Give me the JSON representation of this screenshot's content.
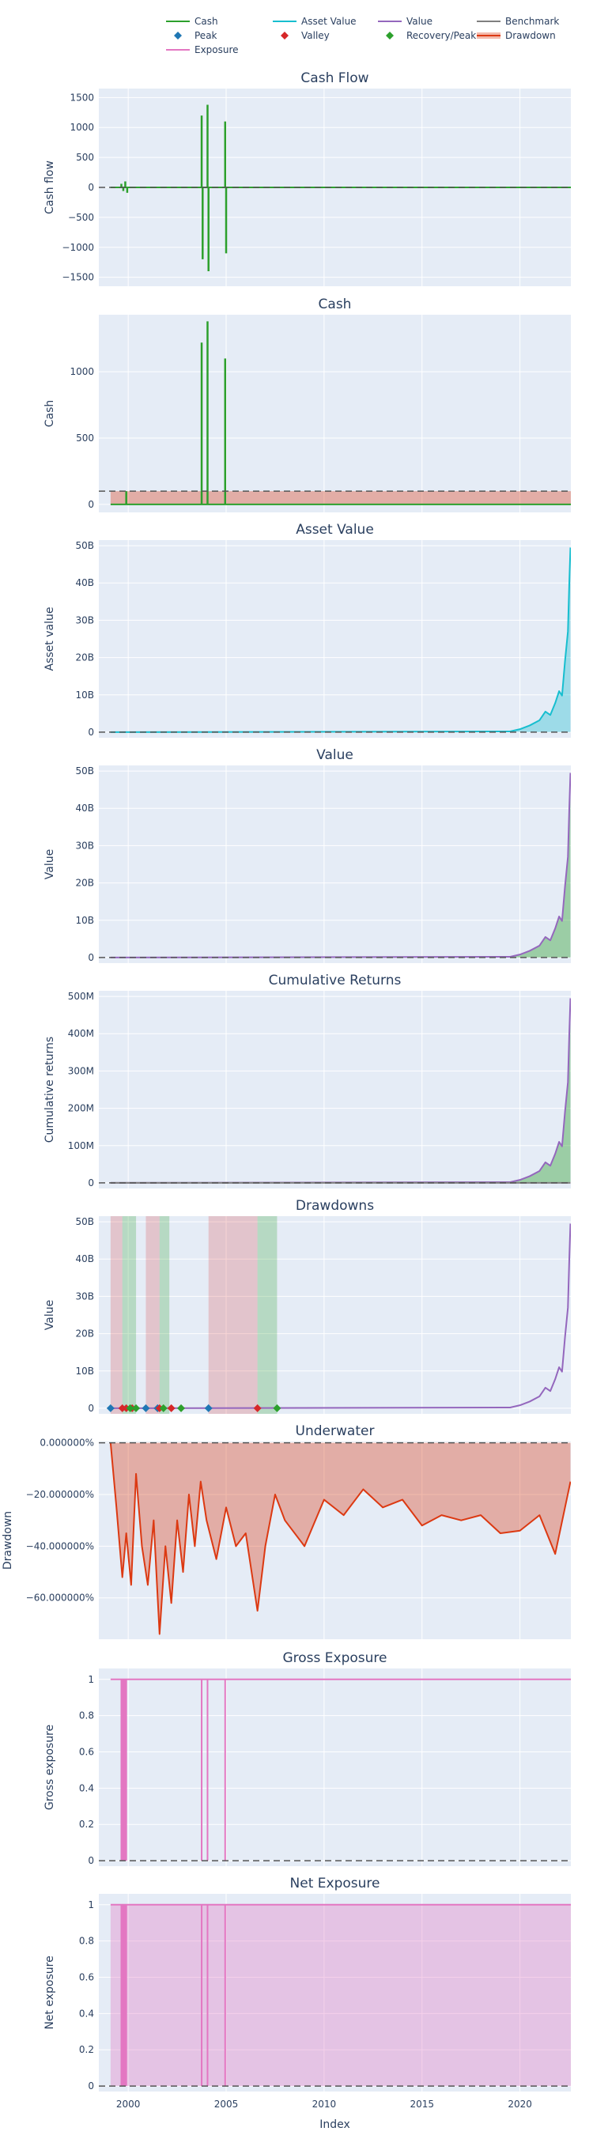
{
  "colors": {
    "plot_bg": "#e5ecf6",
    "grid": "#ffffff",
    "text": "#2a3f5f",
    "cash": "#2ca02c",
    "asset_value": "#17becf",
    "value": "#9467bd",
    "benchmark": "#7f7f7f",
    "exposure": "#e377c2",
    "drawdown": "#dc3912",
    "peak": "#1f77b4",
    "valley": "#d62728",
    "recovery": "#2ca02c"
  },
  "legend": {
    "placement": "top",
    "items": [
      {
        "label": "Cash",
        "kind": "line",
        "color": "#2ca02c"
      },
      {
        "label": "Asset Value",
        "kind": "line",
        "color": "#17becf"
      },
      {
        "label": "Value",
        "kind": "line",
        "color": "#9467bd"
      },
      {
        "label": "Benchmark",
        "kind": "line",
        "color": "#7f7f7f"
      },
      {
        "label": "Peak",
        "kind": "diamond",
        "color": "#1f77b4"
      },
      {
        "label": "Valley",
        "kind": "diamond",
        "color": "#d62728"
      },
      {
        "label": "Recovery/Peak",
        "kind": "diamond",
        "color": "#2ca02c"
      },
      {
        "label": "Drawdown",
        "kind": "band",
        "color": "#dc3912"
      },
      {
        "label": "Exposure",
        "kind": "line",
        "color": "#e377c2"
      }
    ]
  },
  "x_axis": {
    "title": "Index",
    "range": [
      1998.5,
      2022.6
    ],
    "ticks": [
      2000,
      2005,
      2010,
      2015,
      2020
    ],
    "tick_labels": [
      "2000",
      "2005",
      "2010",
      "2015",
      "2020"
    ]
  },
  "chart_data": [
    {
      "id": "cash-flow",
      "type": "line",
      "title": "Cash Flow",
      "ylabel": "Cash flow",
      "ylim": [
        -1650,
        1650
      ],
      "yticks": [
        1500,
        1000,
        500,
        0,
        -500,
        -1000,
        -1500
      ],
      "ytick_labels": [
        "1500",
        "1000",
        "500",
        "0",
        "−500",
        "−1000",
        "−1500"
      ],
      "reference_line": 0,
      "series": [
        {
          "name": "Cash",
          "color": "#2ca02c",
          "baseline": 0,
          "spikes": [
            [
              1999.65,
              60
            ],
            [
              1999.75,
              -60
            ],
            [
              1999.85,
              100
            ],
            [
              1999.95,
              -90
            ],
            [
              2003.75,
              1200
            ],
            [
              2003.8,
              -1200
            ],
            [
              2004.05,
              1380
            ],
            [
              2004.1,
              -1400
            ],
            [
              2004.95,
              1100
            ],
            [
              2005.0,
              -1100
            ]
          ]
        }
      ]
    },
    {
      "id": "cash",
      "type": "area",
      "title": "Cash",
      "ylabel": "Cash",
      "ylim": [
        -60,
        1430
      ],
      "yticks": [
        1000,
        500,
        0
      ],
      "ytick_labels": [
        "1000",
        "500",
        "0"
      ],
      "reference_line": 100,
      "band": {
        "from": 0,
        "to": 100,
        "x_start": 1999.1,
        "color": "#dc3912"
      },
      "series": [
        {
          "name": "Cash",
          "color": "#2ca02c",
          "baseline": 0,
          "spikes": [
            [
              1999.9,
              100
            ],
            [
              2003.75,
              1220
            ],
            [
              2004.05,
              1380
            ],
            [
              2004.95,
              1100
            ]
          ]
        }
      ]
    },
    {
      "id": "asset-value",
      "type": "area",
      "title": "Asset Value",
      "ylabel": "Asset value",
      "ylim": [
        -1.5,
        51.5
      ],
      "unit": "B",
      "yticks": [
        50,
        40,
        30,
        20,
        10,
        0
      ],
      "ytick_labels": [
        "50B",
        "40B",
        "30B",
        "20B",
        "10B",
        "0"
      ],
      "reference_line": 0,
      "series": [
        {
          "name": "Asset Value",
          "color": "#17becf",
          "points": [
            [
              1999.1,
              0
            ],
            [
              2019.5,
              0.2
            ],
            [
              2020.0,
              0.8
            ],
            [
              2020.5,
              1.8
            ],
            [
              2021.0,
              3.2
            ],
            [
              2021.3,
              5.5
            ],
            [
              2021.55,
              4.6
            ],
            [
              2021.8,
              7.8
            ],
            [
              2022.0,
              11.0
            ],
            [
              2022.15,
              9.8
            ],
            [
              2022.3,
              19.0
            ],
            [
              2022.45,
              27.0
            ],
            [
              2022.52,
              40.0
            ],
            [
              2022.58,
              49.5
            ]
          ]
        }
      ]
    },
    {
      "id": "value",
      "type": "area",
      "title": "Value",
      "ylabel": "Value",
      "ylim": [
        -1.5,
        51.5
      ],
      "unit": "B",
      "yticks": [
        50,
        40,
        30,
        20,
        10,
        0
      ],
      "ytick_labels": [
        "50B",
        "40B",
        "30B",
        "20B",
        "10B",
        "0"
      ],
      "reference_line": 0,
      "fill_color": "#2ca02c",
      "series": [
        {
          "name": "Value",
          "color": "#9467bd",
          "points": [
            [
              1999.1,
              0
            ],
            [
              2019.5,
              0.2
            ],
            [
              2020.0,
              0.8
            ],
            [
              2020.5,
              1.8
            ],
            [
              2021.0,
              3.2
            ],
            [
              2021.3,
              5.5
            ],
            [
              2021.55,
              4.6
            ],
            [
              2021.8,
              7.8
            ],
            [
              2022.0,
              11.0
            ],
            [
              2022.15,
              9.8
            ],
            [
              2022.3,
              19.0
            ],
            [
              2022.45,
              27.0
            ],
            [
              2022.52,
              40.0
            ],
            [
              2022.58,
              49.5
            ]
          ]
        }
      ]
    },
    {
      "id": "cumulative-returns",
      "type": "area",
      "title": "Cumulative Returns",
      "ylabel": "Cumulative returns",
      "ylim": [
        -15,
        515
      ],
      "unit": "M",
      "yticks": [
        500,
        400,
        300,
        200,
        100,
        0
      ],
      "ytick_labels": [
        "500M",
        "400M",
        "300M",
        "200M",
        "100M",
        "0"
      ],
      "reference_line": 0,
      "fill_color": "#2ca02c",
      "series": [
        {
          "name": "Value",
          "color": "#9467bd",
          "points": [
            [
              1999.1,
              0
            ],
            [
              2019.5,
              2
            ],
            [
              2020.0,
              8
            ],
            [
              2020.5,
              18
            ],
            [
              2021.0,
              32
            ],
            [
              2021.3,
              55
            ],
            [
              2021.55,
              46
            ],
            [
              2021.8,
              78
            ],
            [
              2022.0,
              110
            ],
            [
              2022.15,
              98
            ],
            [
              2022.3,
              190
            ],
            [
              2022.45,
              270
            ],
            [
              2022.52,
              400
            ],
            [
              2022.58,
              495
            ]
          ]
        },
        {
          "name": "Benchmark",
          "color": "#7f7f7f",
          "points": [
            [
              1999.1,
              0
            ],
            [
              2022.58,
              0
            ]
          ]
        }
      ]
    },
    {
      "id": "drawdowns",
      "type": "line",
      "title": "Drawdowns",
      "ylabel": "Value",
      "ylim": [
        -1.5,
        51.5
      ],
      "unit": "B",
      "yticks": [
        50,
        40,
        30,
        20,
        10,
        0
      ],
      "ytick_labels": [
        "50B",
        "40B",
        "30B",
        "20B",
        "10B",
        "0"
      ],
      "regions": [
        {
          "start": 1999.1,
          "valley": 1999.7,
          "end": 2000.4
        },
        {
          "start": 2000.9,
          "valley": 2001.6,
          "end": 2002.1
        },
        {
          "start": 2004.1,
          "valley": 2006.6,
          "end": 2007.6
        }
      ],
      "markers": {
        "peak": [
          1999.1,
          2000.9,
          2001.5,
          2004.1
        ],
        "valley": [
          1999.7,
          1999.9,
          2000.2,
          2001.6,
          2002.2,
          2006.6
        ],
        "recovery": [
          2000.1,
          2000.4,
          2001.8,
          2002.7,
          2007.6
        ]
      },
      "series": [
        {
          "name": "Value",
          "color": "#9467bd",
          "points": [
            [
              1999.1,
              0
            ],
            [
              2019.5,
              0.2
            ],
            [
              2020.0,
              0.8
            ],
            [
              2020.5,
              1.8
            ],
            [
              2021.0,
              3.2
            ],
            [
              2021.3,
              5.5
            ],
            [
              2021.55,
              4.6
            ],
            [
              2021.8,
              7.8
            ],
            [
              2022.0,
              11.0
            ],
            [
              2022.15,
              9.8
            ],
            [
              2022.3,
              19.0
            ],
            [
              2022.45,
              27.0
            ],
            [
              2022.52,
              40.0
            ],
            [
              2022.58,
              49.5
            ]
          ]
        }
      ]
    },
    {
      "id": "underwater",
      "type": "area",
      "title": "Underwater",
      "ylabel": "Drawdown",
      "ylim": [
        -76,
        0.5
      ],
      "yticks": [
        0,
        -20,
        -40,
        -60
      ],
      "ytick_labels": [
        "0.000000%",
        "−20.000000%",
        "−40.000000%",
        "−60.000000%"
      ],
      "reference_line": 0,
      "series": [
        {
          "name": "Drawdown",
          "color": "#dc3912",
          "points": [
            [
              1999.1,
              0
            ],
            [
              1999.4,
              -25
            ],
            [
              1999.7,
              -52
            ],
            [
              1999.9,
              -35
            ],
            [
              2000.15,
              -55
            ],
            [
              2000.4,
              -12
            ],
            [
              2000.7,
              -40
            ],
            [
              2001.0,
              -55
            ],
            [
              2001.3,
              -30
            ],
            [
              2001.6,
              -74
            ],
            [
              2001.9,
              -40
            ],
            [
              2002.2,
              -62
            ],
            [
              2002.5,
              -30
            ],
            [
              2002.8,
              -50
            ],
            [
              2003.1,
              -20
            ],
            [
              2003.4,
              -40
            ],
            [
              2003.7,
              -15
            ],
            [
              2004.0,
              -30
            ],
            [
              2004.5,
              -45
            ],
            [
              2005.0,
              -25
            ],
            [
              2005.5,
              -40
            ],
            [
              2006.0,
              -35
            ],
            [
              2006.6,
              -65
            ],
            [
              2007.0,
              -40
            ],
            [
              2007.5,
              -20
            ],
            [
              2008.0,
              -30
            ],
            [
              2009.0,
              -40
            ],
            [
              2010.0,
              -22
            ],
            [
              2011.0,
              -28
            ],
            [
              2012.0,
              -18
            ],
            [
              2013.0,
              -25
            ],
            [
              2014.0,
              -22
            ],
            [
              2015.0,
              -32
            ],
            [
              2016.0,
              -28
            ],
            [
              2017.0,
              -30
            ],
            [
              2018.0,
              -28
            ],
            [
              2019.0,
              -35
            ],
            [
              2020.0,
              -34
            ],
            [
              2021.0,
              -28
            ],
            [
              2021.8,
              -43
            ],
            [
              2022.58,
              -15
            ]
          ]
        }
      ]
    },
    {
      "id": "gross-exposure",
      "type": "line",
      "title": "Gross Exposure",
      "ylabel": "Gross exposure",
      "ylim": [
        -0.03,
        1.06
      ],
      "yticks": [
        1,
        0.8,
        0.6,
        0.4,
        0.2,
        0
      ],
      "ytick_labels": [
        "1",
        "0.8",
        "0.6",
        "0.4",
        "0.2",
        "0"
      ],
      "reference_line": 0,
      "series": [
        {
          "name": "Exposure",
          "color": "#e377c2",
          "baseline": 1,
          "dips": [
            1999.65,
            1999.7,
            1999.75,
            1999.8,
            1999.85,
            1999.9,
            2003.75,
            2004.05,
            2004.95
          ]
        }
      ]
    },
    {
      "id": "net-exposure",
      "type": "area",
      "title": "Net Exposure",
      "ylabel": "Net exposure",
      "ylim": [
        -0.03,
        1.06
      ],
      "yticks": [
        1,
        0.8,
        0.6,
        0.4,
        0.2,
        0
      ],
      "ytick_labels": [
        "1",
        "0.8",
        "0.6",
        "0.4",
        "0.2",
        "0"
      ],
      "reference_line": 0,
      "series": [
        {
          "name": "Exposure",
          "color": "#e377c2",
          "baseline": 1,
          "dips": [
            1999.65,
            1999.7,
            1999.75,
            1999.8,
            1999.85,
            1999.9,
            2003.75,
            2004.05,
            2004.95
          ]
        }
      ]
    }
  ]
}
